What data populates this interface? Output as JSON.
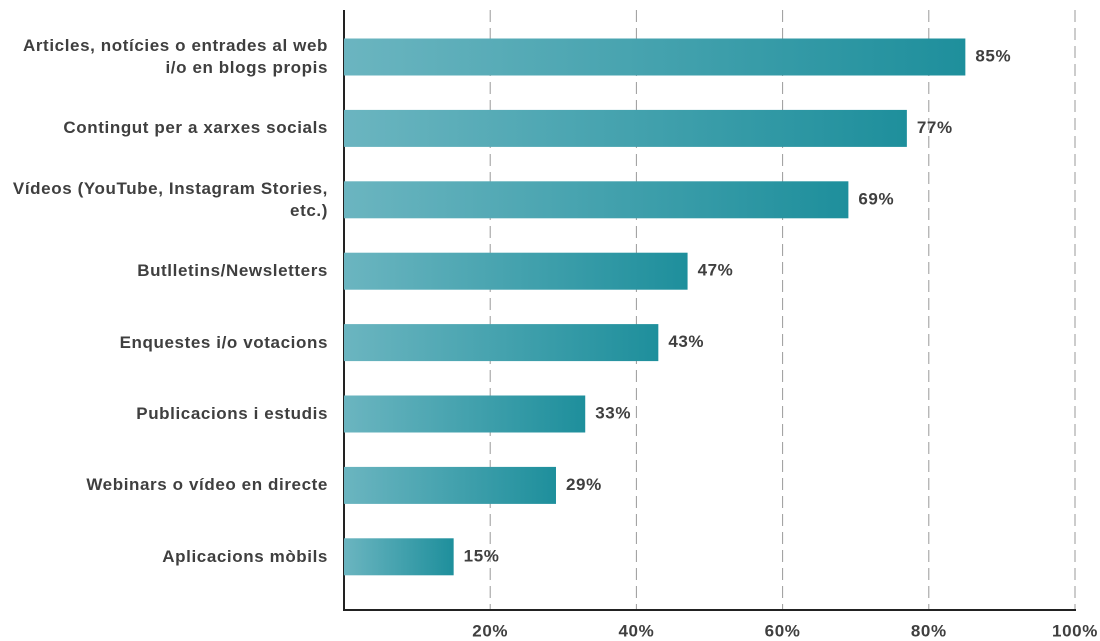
{
  "chart_data": {
    "type": "bar",
    "orientation": "horizontal",
    "categories": [
      "Articles, notícies o entrades al web i/o en blogs propis",
      "Contingut per a xarxes socials",
      "Vídeos (YouTube, Instagram Stories, etc.)",
      "Butlletins/Newsletters",
      "Enquestes i/o votacions",
      "Publicacions i estudis",
      "Webinars o vídeo en directe",
      "Aplicacions mòbils"
    ],
    "values": [
      85,
      77,
      69,
      47,
      43,
      33,
      29,
      15
    ],
    "value_labels": [
      "85%",
      "77%",
      "69%",
      "47%",
      "43%",
      "33%",
      "29%",
      "15%"
    ],
    "color": [
      "#6bb5c0",
      "#1e8f9c"
    ],
    "xlim": [
      0,
      100
    ],
    "xticks": [
      {
        "value": 20,
        "label": "20%"
      },
      {
        "value": 40,
        "label": "40%"
      },
      {
        "value": 60,
        "label": "60%"
      },
      {
        "value": 80,
        "label": "80%"
      },
      {
        "value": 100,
        "label": "100%"
      }
    ],
    "grid": true
  }
}
